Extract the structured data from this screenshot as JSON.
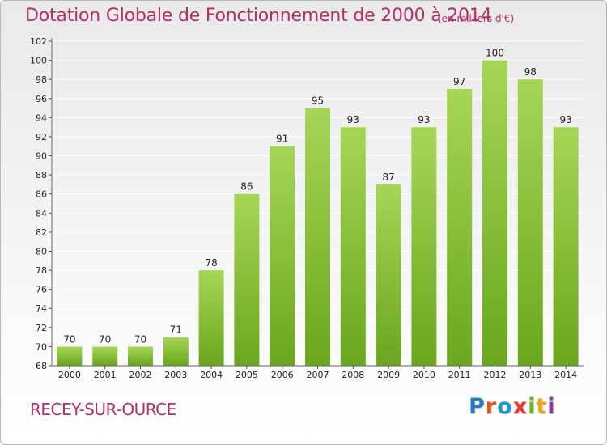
{
  "header": {
    "title": "Dotation Globale de Fonctionnement de 2000 à 2014",
    "unit": "(en milliers d'€)"
  },
  "footer": {
    "place": "RECEY-SUR-OURCE",
    "logo_text": "Proxiti",
    "logo_colors": [
      "#2a7bc8",
      "#e2561e",
      "#1f9ad6",
      "#e33c2c",
      "#6fb427",
      "#f0a417",
      "#8e3b9b"
    ]
  },
  "colors": {
    "bar_light": "#a6d656",
    "bar_dark": "#6aa61e",
    "title": "#b0306a",
    "axis_text": "#222222",
    "grid": "#ffffff"
  },
  "chart_data": {
    "type": "bar",
    "categories": [
      "2000",
      "2001",
      "2002",
      "2003",
      "2004",
      "2005",
      "2006",
      "2007",
      "2008",
      "2009",
      "2010",
      "2011",
      "2012",
      "2013",
      "2014"
    ],
    "values": [
      70,
      70,
      70,
      71,
      78,
      86,
      91,
      95,
      93,
      87,
      93,
      97,
      100,
      98,
      93
    ],
    "yticks": [
      68,
      70,
      72,
      74,
      76,
      78,
      80,
      82,
      84,
      86,
      88,
      90,
      92,
      94,
      96,
      98,
      100,
      102
    ],
    "ylim": [
      68,
      102
    ],
    "grid": true,
    "data_labels": true,
    "legend": "none"
  }
}
